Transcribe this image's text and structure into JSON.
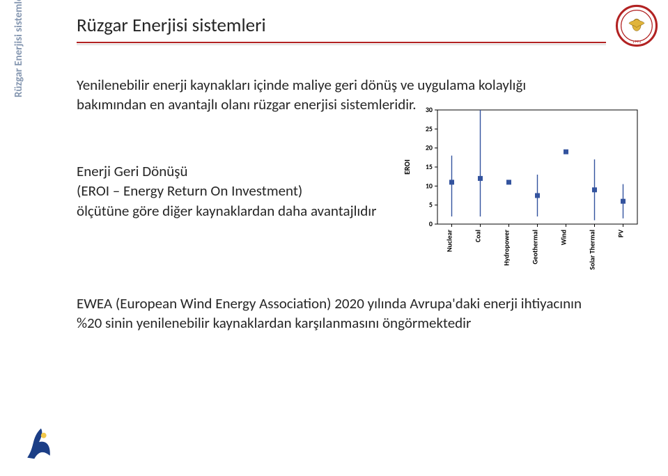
{
  "sidebar": {
    "label": "Rüzgar Enerjisi sistemleri"
  },
  "title": "Rüzgar Enerjisi sistemleri",
  "paragraphs": {
    "p1": "Yenilenebilir enerji kaynakları içinde maliye geri dönüş ve uygulama kolaylığı bakımından en avantajlı olanı rüzgar enerjisi sistemleridir.",
    "p2": "Enerji Geri Dönüşü\n(EROI – Energy Return On Investment)\nölçütüne göre  diğer kaynaklardan daha avantajlıdır",
    "p3": "EWEA (European Wind Energy Association) 2020 yılında Avrupa'daki enerji ihtiyacının %20 sinin yenilenebilir kaynaklardan karşılanmasını öngörmektedir"
  },
  "chart": {
    "type": "scatter-errorbar",
    "ylabel": "EROI",
    "label_fontsize": 11,
    "label_fontweight": 700,
    "label_color": "#000000",
    "ylim": [
      0,
      30
    ],
    "ytick_step": 5,
    "yticks": [
      0,
      5,
      10,
      15,
      20,
      25,
      30
    ],
    "background_color": "#ffffff",
    "plot_bg": "#ffffff",
    "plot_border": "#000000",
    "axis_color": "#000000",
    "marker_color": "#33539e",
    "marker_shape": "square",
    "marker_size": 7,
    "errorbar_color": "#33539e",
    "errorbar_width": 1.4,
    "categories": [
      "Nuclear",
      "Coal",
      "Hydropower",
      "Geothermal",
      "Wind",
      "Solar Thermal",
      "PV"
    ],
    "points": [
      {
        "x": 0,
        "y": 11,
        "err_lo": 9,
        "err_hi": 7
      },
      {
        "x": 1,
        "y": 12,
        "err_lo": 10,
        "err_hi": 18
      },
      {
        "x": 2,
        "y": 11,
        "err_lo": 0.5,
        "err_hi": 0.5
      },
      {
        "x": 3,
        "y": 7.5,
        "err_lo": 5.5,
        "err_hi": 5.5
      },
      {
        "x": 4,
        "y": 19,
        "err_lo": 0.5,
        "err_hi": 0.5
      },
      {
        "x": 5,
        "y": 9,
        "err_lo": 8,
        "err_hi": 8
      },
      {
        "x": 6,
        "y": 6,
        "err_lo": 4.5,
        "err_hi": 4.5
      }
    ],
    "tick_fontsize": 10,
    "tick_color": "#000000",
    "xrot": -90
  },
  "colors": {
    "title_text": "#262626",
    "body_text": "#262626",
    "sidebar_text": "#8496b0",
    "underline": "#b22222",
    "logo_ring": "#b22222",
    "logo_year": "1773",
    "bottom_logo_blue": "#1b3e86",
    "bottom_logo_yellow": "#f2c84b"
  }
}
